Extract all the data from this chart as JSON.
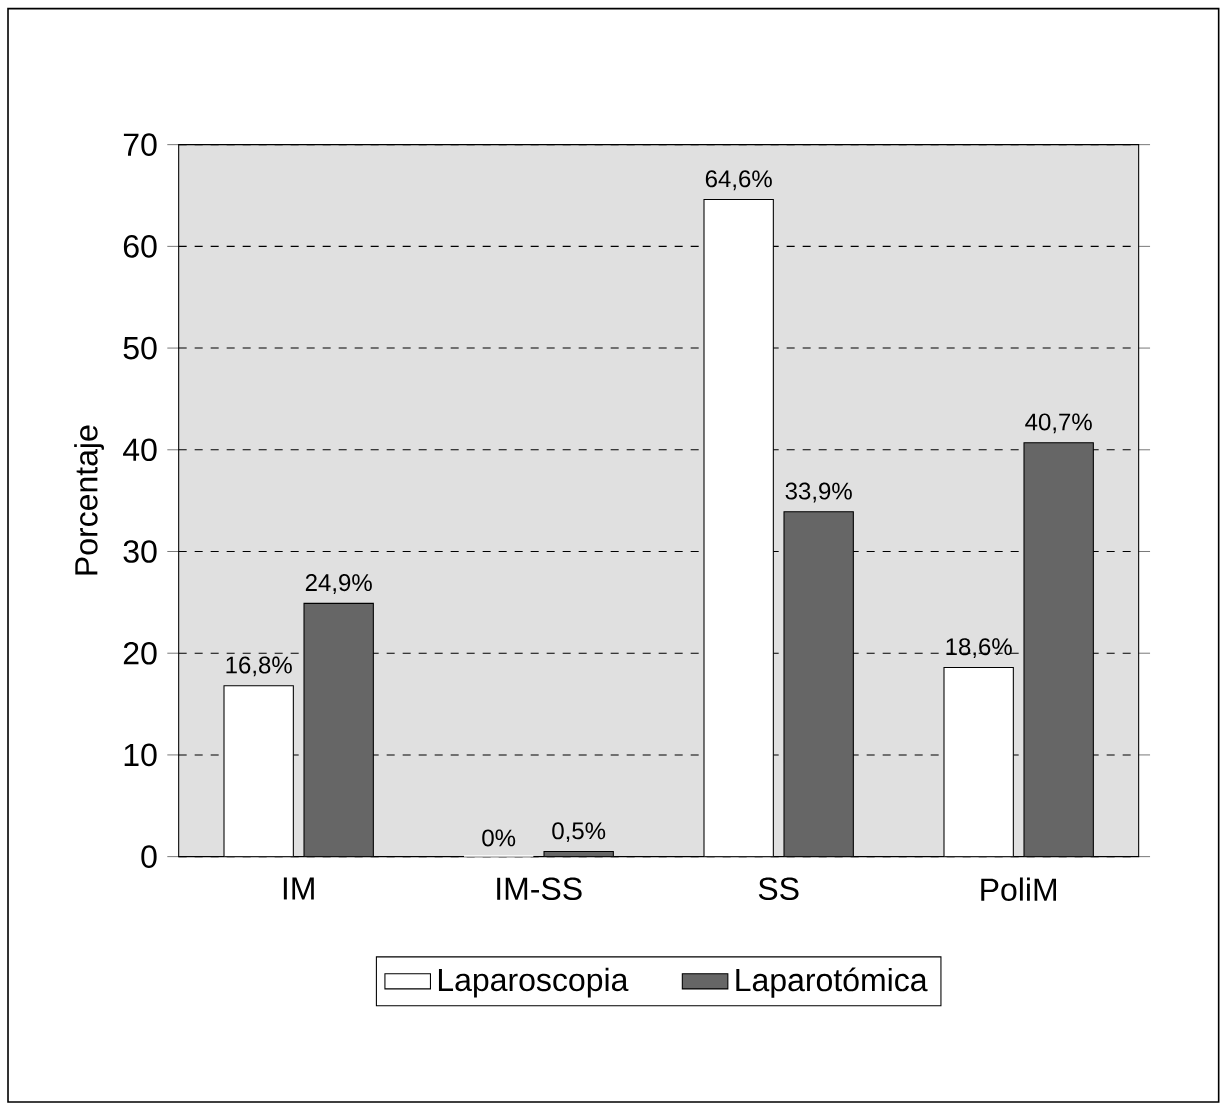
{
  "chart_data": {
    "type": "bar",
    "ylabel": "Porcentaje",
    "categories": [
      "IM",
      "IM-SS",
      "SS",
      "PoliM"
    ],
    "series": [
      {
        "name": "Laparoscopia",
        "color": "#ffffff",
        "values": [
          16.8,
          0,
          64.6,
          18.6
        ],
        "value_labels": [
          "16,8%",
          "0%",
          "64,6%",
          "18,6%"
        ]
      },
      {
        "name": "Laparotómica",
        "color": "#666666",
        "values": [
          24.9,
          0.5,
          33.9,
          40.7
        ],
        "value_labels": [
          "24,9%",
          "0,5%",
          "33,9%",
          "40,7%"
        ]
      }
    ],
    "ylim": [
      0,
      70
    ],
    "yticks": [
      0,
      10,
      20,
      30,
      40,
      50,
      60,
      70
    ],
    "grid": "y",
    "legend": "bottom"
  }
}
